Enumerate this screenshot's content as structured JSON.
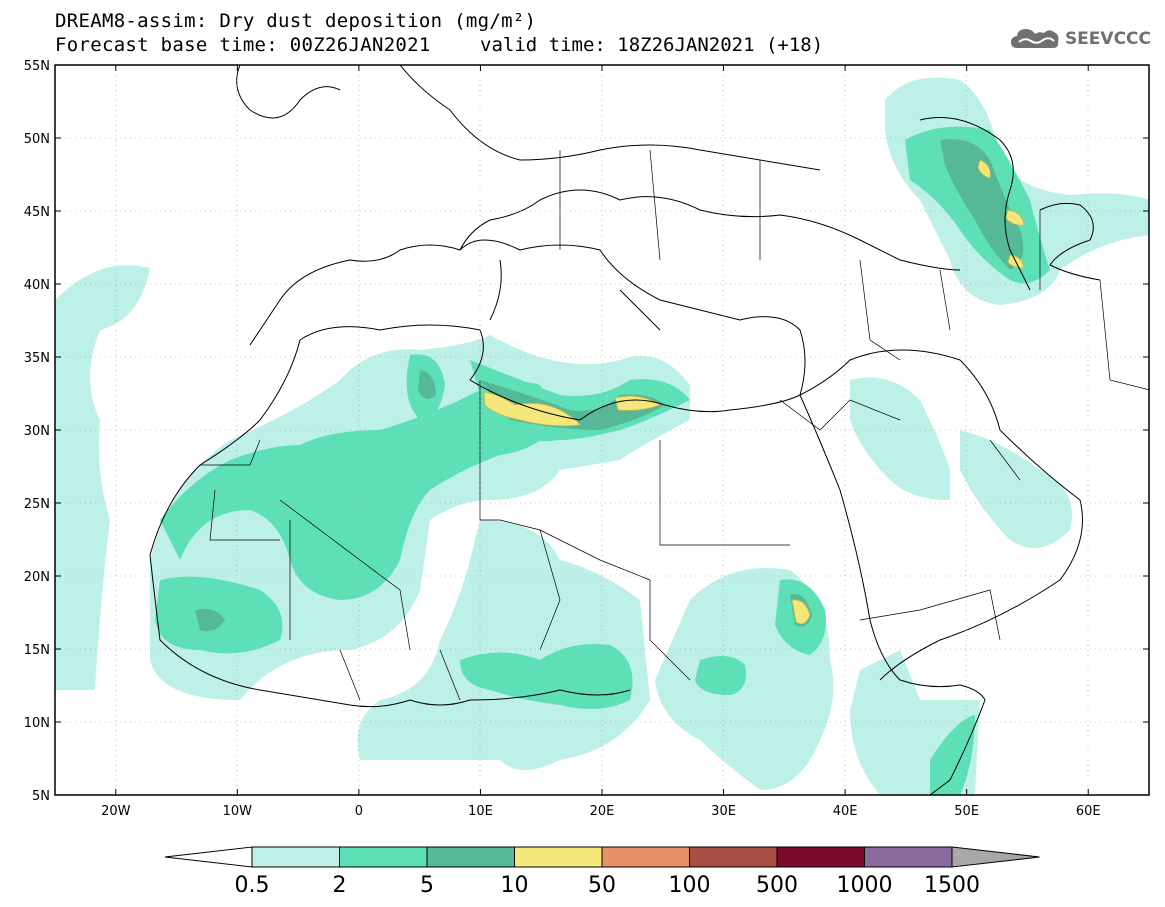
{
  "header": {
    "line1": "DREAM8-assim: Dry dust deposition (mg/m²)",
    "base_time": "Forecast base time: 00Z26JAN2021",
    "valid_time": "valid time: 18Z26JAN2021 (+18)",
    "logo_text": "SEEVCCC",
    "logo_icon": "cloud-icon"
  },
  "map": {
    "lat_labels": [
      "55N",
      "50N",
      "45N",
      "40N",
      "35N",
      "30N",
      "25N",
      "20N",
      "15N",
      "10N",
      "5N"
    ],
    "lon_labels": [
      "20W",
      "10W",
      "0",
      "10E",
      "20E",
      "30E",
      "40E",
      "50E",
      "60E"
    ],
    "lon_range": [
      -25,
      65
    ],
    "lat_range": [
      5,
      55
    ]
  },
  "colorbar": {
    "labels": [
      "0.5",
      "2",
      "5",
      "10",
      "50",
      "100",
      "500",
      "1000",
      "1500"
    ],
    "colors": [
      "#bdf0e6",
      "#5de0b6",
      "#55b896",
      "#f5e77a",
      "#e8906a",
      "#a84e42",
      "#7d0a2a",
      "#8b6aa0",
      "#a8a8a8"
    ]
  }
}
